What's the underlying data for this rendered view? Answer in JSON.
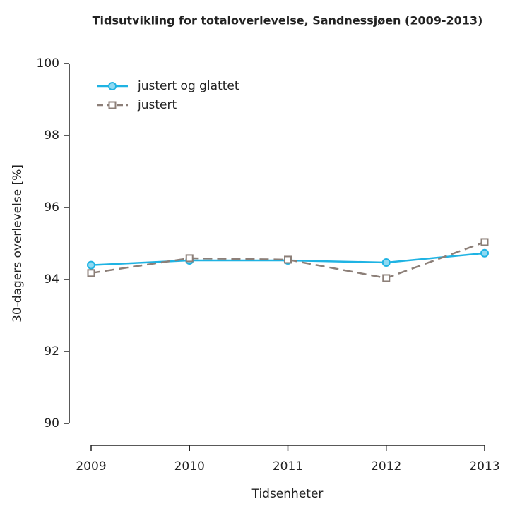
{
  "chart_data": {
    "type": "line",
    "title": "Tidsutvikling for totaloverlevelse, Sandnessjøen (2009-2013)",
    "x_label": "Tidsenheter",
    "y_label": "30-dagers overlevelse [%]",
    "x": [
      2009,
      2010,
      2011,
      2012,
      2013
    ],
    "xlim": [
      2009,
      2013
    ],
    "xticks": [
      2009,
      2010,
      2011,
      2012,
      2013
    ],
    "ylim": [
      90,
      100
    ],
    "yticks": [
      90,
      92,
      94,
      96,
      98,
      100
    ],
    "legend": "top-left",
    "series": [
      {
        "name": "justert og glattet",
        "color": "#1fb3e3",
        "values": [
          94.4,
          94.53,
          94.53,
          94.47,
          94.73
        ]
      },
      {
        "name": "justert",
        "color": "#8c7f78",
        "values": [
          94.18,
          94.59,
          94.55,
          94.04,
          95.04
        ]
      }
    ]
  }
}
